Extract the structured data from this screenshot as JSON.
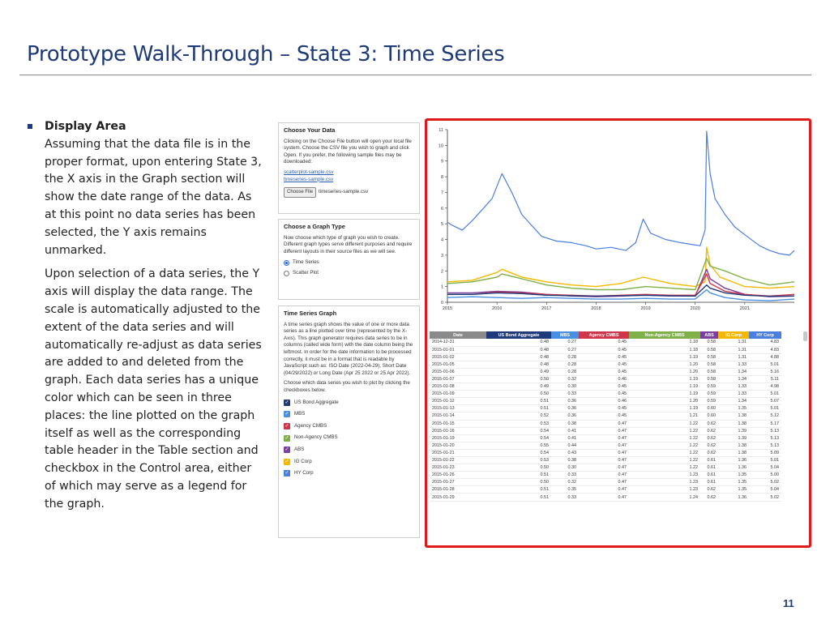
{
  "slide": {
    "title": "Prototype Walk-Through – State 3: Time Series",
    "page_number": "11"
  },
  "text": {
    "bullet_heading": "Display Area",
    "paragraph1": "Assuming that the data file is in the proper format, upon entering State 3, the X axis in the Graph section will show the date range of the data. As at this point no data series has been selected, the Y axis remains unmarked.",
    "paragraph2": "Upon selection of a data series, the Y axis will display the data range. The scale is automatically adjusted to the extent of the data series and will automatically re-adjust as data series are added to and deleted from the graph. Each data series has a unique color which can be seen in three places: the line plotted on the graph itself as well as the corresponding table header in the Table section and checkbox in the Control area, either of which may serve as a legend for the graph."
  },
  "panel_data": {
    "title": "Choose Your Data",
    "description": "Clicking on the Choose File button will open your local file system. Choose the CSV file you wish to graph and click Open. If you prefer, the following sample files may be downloaded:",
    "link1": "scatterplot-sample.csv",
    "link2": "timeseries-sample.csv",
    "file_button": "Choose File",
    "file_name": "timeseries-sample.csv"
  },
  "panel_graph_type": {
    "title": "Choose a Graph Type",
    "description": "Now choose which type of graph you wish to create. Different graph types serve different purposes and require different layouts in their source files as we will see.",
    "option1": "Time Series",
    "option2": "Scatter Plot"
  },
  "panel_ts": {
    "title": "Time Series Graph",
    "description": "A time series graph shows the value of one or more data series as a line plotted over time (represented by the X-Axis). This graph generator requires data series to be in columns (called wide form) with the date column being the leftmost. In order for the date information to be processed correctly, it must be in a format that is readable by JavaScript such as: ISO Date (2022-04-29), Short Date (04/29/2022) or Long Date (Apr 25 2022 or 25 Apr 2022).",
    "instruction": "Choose which data series you wish to plot by clicking the checkboxes below.",
    "series": [
      {
        "label": "US Bond Aggregate",
        "color": "#1f3a78"
      },
      {
        "label": "MBS",
        "color": "#4a90e2"
      },
      {
        "label": "Agency CMBS",
        "color": "#d0364a"
      },
      {
        "label": "Non-Agency CMBS",
        "color": "#7fb04a"
      },
      {
        "label": "ABS",
        "color": "#7b3f9e"
      },
      {
        "label": "IG Corp",
        "color": "#f5b800"
      },
      {
        "label": "HY Corp",
        "color": "#4a7fe0"
      }
    ]
  },
  "chart_data": {
    "type": "line",
    "x_ticks": [
      "2015",
      "2016",
      "2017",
      "2018",
      "2019",
      "2020",
      "2021"
    ],
    "y_ticks": [
      "0",
      "1",
      "2",
      "3",
      "4",
      "5",
      "6",
      "7",
      "8",
      "9",
      "10",
      "11"
    ],
    "ylim": [
      0,
      11
    ],
    "xlim": [
      2015.0,
      2022.0
    ],
    "grid": false,
    "series": [
      {
        "name": "HY Corp",
        "color": "#4a7fe0",
        "x": [
          2015.0,
          2015.1,
          2015.3,
          2015.5,
          2015.7,
          2015.9,
          2016.1,
          2016.3,
          2016.5,
          2016.7,
          2016.9,
          2017.2,
          2017.5,
          2017.8,
          2018.0,
          2018.3,
          2018.6,
          2018.8,
          2018.95,
          2019.1,
          2019.4,
          2019.7,
          2019.9,
          2020.1,
          2020.2,
          2020.23,
          2020.3,
          2020.4,
          2020.6,
          2020.8,
          2021.0,
          2021.3,
          2021.5,
          2021.7,
          2021.9,
          2022.0
        ],
        "y": [
          5.1,
          4.9,
          4.6,
          5.2,
          5.9,
          6.6,
          8.2,
          7.0,
          5.6,
          4.9,
          4.2,
          3.9,
          3.8,
          3.6,
          3.4,
          3.5,
          3.3,
          3.8,
          5.3,
          4.4,
          4.0,
          3.8,
          3.7,
          3.6,
          4.6,
          10.9,
          8.2,
          6.6,
          5.6,
          4.8,
          4.3,
          3.6,
          3.3,
          3.1,
          3.0,
          3.3
        ]
      },
      {
        "name": "IG Corp",
        "color": "#f5b800",
        "x": [
          2015.0,
          2015.5,
          2016.0,
          2016.1,
          2016.5,
          2017.0,
          2017.5,
          2018.0,
          2018.5,
          2018.95,
          2019.5,
          2020.0,
          2020.2,
          2020.23,
          2020.3,
          2020.5,
          2021.0,
          2021.5,
          2022.0
        ],
        "y": [
          1.3,
          1.4,
          1.9,
          2.1,
          1.6,
          1.3,
          1.1,
          1.0,
          1.2,
          1.6,
          1.2,
          1.0,
          1.3,
          3.5,
          2.4,
          1.6,
          1.0,
          0.9,
          1.0
        ]
      },
      {
        "name": "Non-Agency CMBS",
        "color": "#7fb04a",
        "x": [
          2015.0,
          2015.5,
          2016.0,
          2016.1,
          2016.5,
          2017.0,
          2017.5,
          2018.0,
          2018.5,
          2019.0,
          2019.5,
          2020.0,
          2020.23,
          2020.3,
          2020.6,
          2021.0,
          2021.5,
          2022.0
        ],
        "y": [
          1.2,
          1.3,
          1.6,
          1.8,
          1.5,
          1.1,
          0.9,
          0.8,
          0.8,
          1.0,
          0.9,
          0.8,
          2.8,
          2.3,
          2.0,
          1.5,
          1.1,
          1.3
        ]
      },
      {
        "name": "ABS",
        "color": "#7b3f9e",
        "x": [
          2015.0,
          2015.5,
          2016.0,
          2016.5,
          2017.0,
          2017.5,
          2018.0,
          2018.5,
          2019.0,
          2019.5,
          2020.0,
          2020.23,
          2020.3,
          2020.6,
          2021.0,
          2021.5,
          2022.0
        ],
        "y": [
          0.6,
          0.6,
          0.7,
          0.65,
          0.5,
          0.4,
          0.35,
          0.4,
          0.45,
          0.4,
          0.4,
          2.1,
          1.5,
          0.9,
          0.5,
          0.35,
          0.4
        ]
      },
      {
        "name": "Agency CMBS",
        "color": "#d0364a",
        "x": [
          2015.0,
          2015.5,
          2016.0,
          2016.5,
          2017.0,
          2017.5,
          2018.0,
          2018.5,
          2019.0,
          2019.5,
          2020.0,
          2020.23,
          2020.3,
          2020.6,
          2021.0,
          2021.5,
          2022.0
        ],
        "y": [
          0.5,
          0.5,
          0.65,
          0.6,
          0.5,
          0.45,
          0.4,
          0.45,
          0.5,
          0.45,
          0.45,
          1.8,
          1.2,
          0.7,
          0.5,
          0.4,
          0.5
        ]
      },
      {
        "name": "US Bond Aggregate",
        "color": "#1f3a78",
        "x": [
          2015.0,
          2015.5,
          2016.0,
          2016.5,
          2017.0,
          2017.5,
          2018.0,
          2018.5,
          2019.0,
          2019.5,
          2020.0,
          2020.23,
          2020.3,
          2020.6,
          2021.0,
          2021.5,
          2022.0
        ],
        "y": [
          0.5,
          0.5,
          0.6,
          0.55,
          0.45,
          0.42,
          0.4,
          0.42,
          0.45,
          0.42,
          0.4,
          1.1,
          0.9,
          0.6,
          0.45,
          0.38,
          0.4
        ]
      },
      {
        "name": "MBS",
        "color": "#4a90e2",
        "x": [
          2015.0,
          2015.5,
          2016.0,
          2016.5,
          2017.0,
          2017.5,
          2018.0,
          2018.5,
          2019.0,
          2019.5,
          2020.0,
          2020.23,
          2020.3,
          2020.6,
          2021.0,
          2021.5,
          2022.0
        ],
        "y": [
          0.3,
          0.35,
          0.3,
          0.25,
          0.3,
          0.25,
          0.2,
          0.2,
          0.25,
          0.2,
          0.2,
          0.8,
          0.6,
          0.3,
          0.15,
          0.1,
          0.2
        ]
      }
    ]
  },
  "table": {
    "headers": [
      {
        "label": "Date",
        "color": "#8a8a8a"
      },
      {
        "label": "US Bond Aggregate",
        "color": "#1f3a78"
      },
      {
        "label": "MBS",
        "color": "#4a90e2"
      },
      {
        "label": "Agency CMBS",
        "color": "#d0364a"
      },
      {
        "label": "Non-Agency CMBS",
        "color": "#7fb04a"
      },
      {
        "label": "ABS",
        "color": "#7b3f9e"
      },
      {
        "label": "IG Corp",
        "color": "#f5b800"
      },
      {
        "label": "HY Corp",
        "color": "#4a7fe0"
      }
    ],
    "rows": [
      [
        "2014-12-31",
        "0.48",
        "0.27",
        "0.45",
        "1.18",
        "0.58",
        "1.31",
        "4.83"
      ],
      [
        "2015-01-01",
        "0.48",
        "0.27",
        "0.45",
        "1.18",
        "0.58",
        "1.31",
        "4.83"
      ],
      [
        "2015-01-02",
        "0.48",
        "0.28",
        "0.45",
        "1.19",
        "0.58",
        "1.31",
        "4.88"
      ],
      [
        "2015-01-05",
        "0.48",
        "0.28",
        "0.45",
        "1.20",
        "0.58",
        "1.33",
        "5.01"
      ],
      [
        "2015-01-06",
        "0.49",
        "0.28",
        "0.45",
        "1.20",
        "0.58",
        "1.34",
        "5.16"
      ],
      [
        "2015-01-07",
        "0.50",
        "0.32",
        "0.46",
        "1.19",
        "0.58",
        "1.34",
        "5.11"
      ],
      [
        "2015-01-08",
        "0.49",
        "0.30",
        "0.45",
        "1.19",
        "0.59",
        "1.33",
        "4.98"
      ],
      [
        "2015-01-09",
        "0.50",
        "0.33",
        "0.45",
        "1.19",
        "0.59",
        "1.33",
        "5.01"
      ],
      [
        "2015-01-12",
        "0.51",
        "0.36",
        "0.46",
        "1.20",
        "0.59",
        "1.34",
        "5.07"
      ],
      [
        "2015-01-13",
        "0.51",
        "0.36",
        "0.45",
        "1.19",
        "0.60",
        "1.35",
        "5.01"
      ],
      [
        "2015-01-14",
        "0.52",
        "0.36",
        "0.45",
        "1.21",
        "0.60",
        "1.38",
        "5.12"
      ],
      [
        "2015-01-15",
        "0.53",
        "0.38",
        "0.47",
        "1.22",
        "0.62",
        "1.38",
        "5.17"
      ],
      [
        "2015-01-16",
        "0.54",
        "0.41",
        "0.47",
        "1.22",
        "0.62",
        "1.39",
        "5.13"
      ],
      [
        "2015-01-19",
        "0.54",
        "0.41",
        "0.47",
        "1.22",
        "0.62",
        "1.39",
        "5.13"
      ],
      [
        "2015-01-20",
        "0.55",
        "0.44",
        "0.47",
        "1.22",
        "0.62",
        "1.38",
        "5.13"
      ],
      [
        "2015-01-21",
        "0.54",
        "0.43",
        "0.47",
        "1.22",
        "0.62",
        "1.38",
        "5.09"
      ],
      [
        "2015-01-22",
        "0.53",
        "0.38",
        "0.47",
        "1.22",
        "0.61",
        "1.36",
        "5.01"
      ],
      [
        "2015-01-23",
        "0.50",
        "0.30",
        "0.47",
        "1.22",
        "0.61",
        "1.36",
        "5.04"
      ],
      [
        "2015-01-26",
        "0.51",
        "0.33",
        "0.47",
        "1.23",
        "0.61",
        "1.35",
        "5.00"
      ],
      [
        "2015-01-27",
        "0.50",
        "0.32",
        "0.47",
        "1.23",
        "0.61",
        "1.35",
        "5.02"
      ],
      [
        "2015-01-28",
        "0.51",
        "0.35",
        "0.47",
        "1.23",
        "0.62",
        "1.35",
        "5.04"
      ],
      [
        "2015-01-29",
        "0.51",
        "0.33",
        "0.47",
        "1.24",
        "0.62",
        "1.36",
        "5.02"
      ]
    ]
  }
}
